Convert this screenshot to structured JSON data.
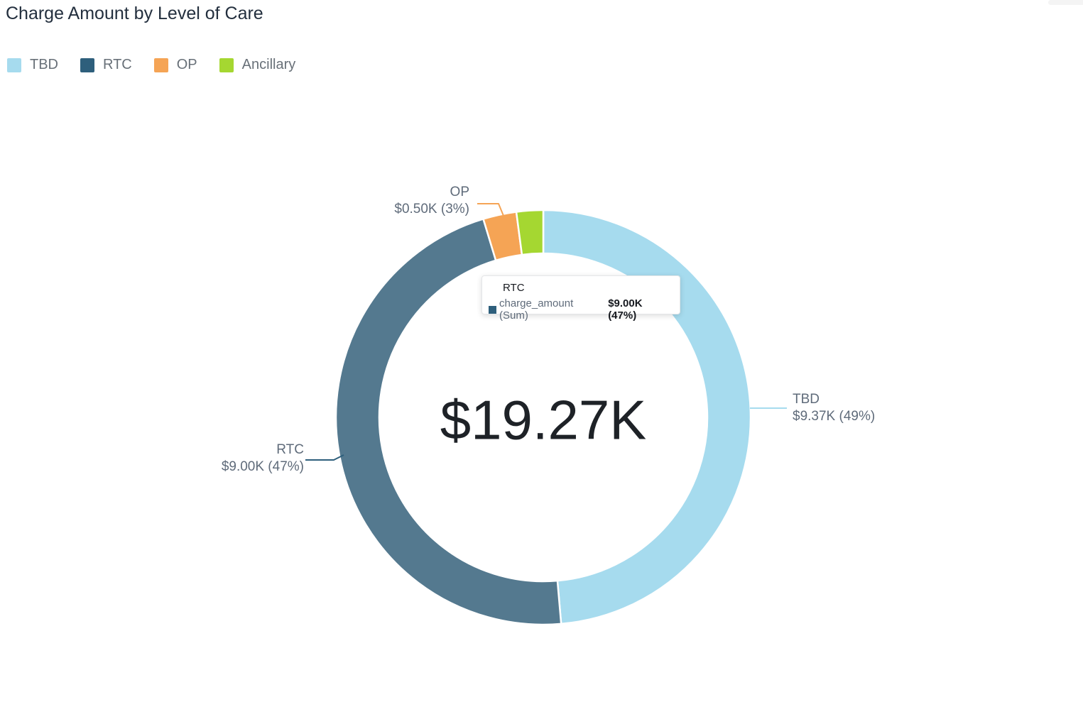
{
  "header": {
    "title": "Charge Amount by Level of Care"
  },
  "legend": {
    "items": [
      {
        "label": "TBD",
        "color": "#A6DBEE"
      },
      {
        "label": "RTC",
        "color": "#2E5F7C"
      },
      {
        "label": "OP",
        "color": "#F5A455"
      },
      {
        "label": "Ancillary",
        "color": "#A5D731"
      }
    ]
  },
  "chart_data": {
    "type": "pie",
    "variant": "donut",
    "title": "Charge Amount by Level of Care",
    "metric": "charge_amount (Sum)",
    "center_label": "$19.27K",
    "total_value_k": 19.27,
    "categories": [
      "TBD",
      "RTC",
      "OP",
      "Ancillary"
    ],
    "values": [
      9.37,
      9.0,
      0.5,
      0.4
    ],
    "slices": [
      {
        "name": "TBD",
        "value_k": 9.37,
        "percent": 49,
        "display": "$9.37K (49%)",
        "color": "#A6DBEE",
        "highlighted": false
      },
      {
        "name": "RTC",
        "value_k": 9.0,
        "percent": 47,
        "display": "$9.00K (47%)",
        "color": "#54798F",
        "legend_color": "#2E5F7C",
        "highlighted": true
      },
      {
        "name": "OP",
        "value_k": 0.5,
        "percent": 3,
        "display": "$0.50K (3%)",
        "color": "#F5A455",
        "highlighted": false
      },
      {
        "name": "Ancillary",
        "value_k": 0.4,
        "percent": 2,
        "color": "#A5D731",
        "highlighted": false
      }
    ],
    "start_angle_deg": 0,
    "direction": "clockwise",
    "legend_position": "top-left"
  },
  "callouts": [
    {
      "name": "OP",
      "label": "OP",
      "value_text": "$0.50K (3%)",
      "line_color": "#F5A455"
    },
    {
      "name": "TBD",
      "label": "TBD",
      "value_text": "$9.37K (49%)",
      "line_color": "#A6DBEE"
    },
    {
      "name": "RTC",
      "label": "RTC",
      "value_text": "$9.00K (47%)",
      "line_color": "#2E5F7C"
    }
  ],
  "tooltip": {
    "title": "RTC",
    "swatch_color": "#2E5F7C",
    "metric_label": "charge_amount (Sum)",
    "value": "$9.00K (47%)"
  }
}
